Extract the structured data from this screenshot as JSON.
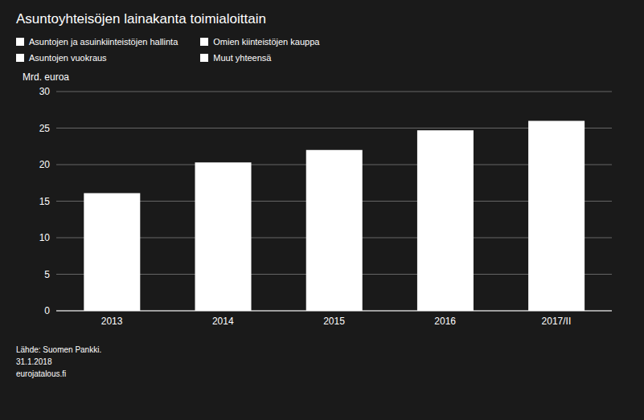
{
  "chart_data": {
    "type": "bar",
    "title": "Asuntoyhteisöjen lainakanta toimialoittain",
    "y_label": "Mrd. euroa",
    "categories": [
      "2013",
      "2014",
      "2015",
      "2016",
      "2017/II"
    ],
    "values": [
      16.1,
      20.3,
      22.0,
      24.7,
      26.0
    ],
    "color": "#ffffff",
    "ylim": [
      0,
      30
    ],
    "yticks": [
      0,
      5,
      10,
      15,
      20,
      25,
      30
    ],
    "grid": true,
    "legend": "top",
    "legend_entries": [
      {
        "label": "Asuntojen ja asuinkiinteistöjen hallinta",
        "color": "#ffffff"
      },
      {
        "label": "Omien kiinteistöjen kauppa",
        "color": "#ffffff"
      },
      {
        "label": "Asuntojen vuokraus",
        "color": "#ffffff"
      },
      {
        "label": "Muut yhteensä",
        "color": "#ffffff"
      }
    ],
    "annotations": [
      "Lähde: Suomen Pankki.",
      "31.1.2018",
      "eurojatalous.fi"
    ]
  }
}
